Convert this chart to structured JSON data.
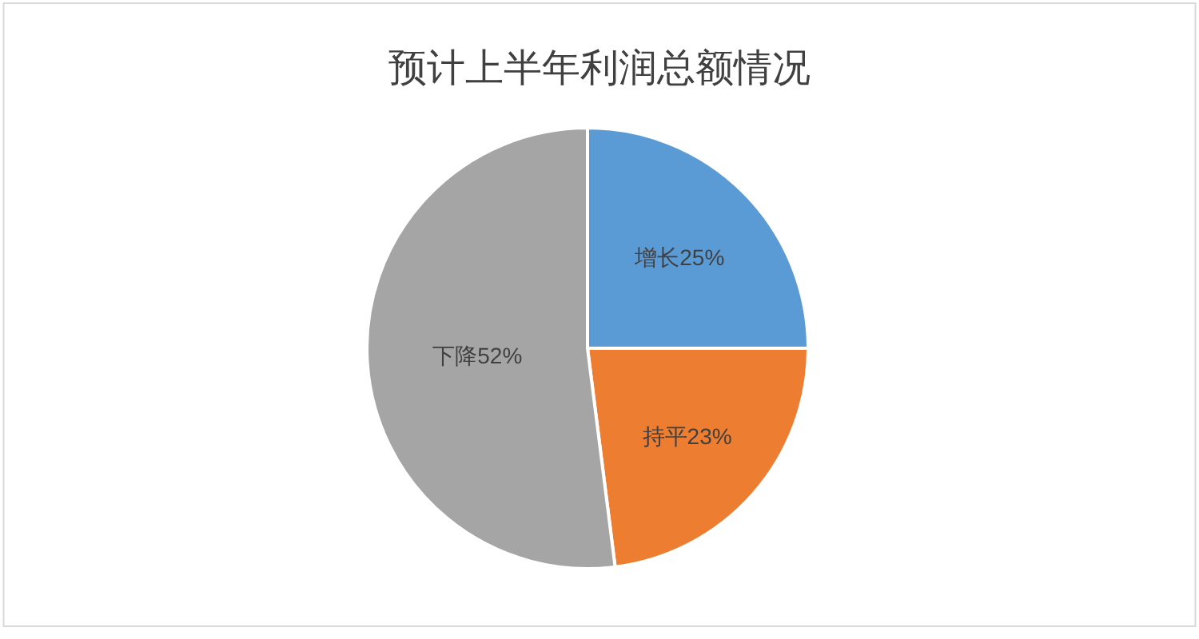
{
  "chart_data": {
    "type": "pie",
    "title": "预计上半年利润总额情况",
    "categories": [
      "增长",
      "持平",
      "下降"
    ],
    "values": [
      25,
      23,
      52
    ],
    "colors": [
      "#5b9bd5",
      "#ed7d31",
      "#a5a5a5"
    ],
    "value_labels": [
      "25%",
      "23%",
      "52%"
    ],
    "legend": false
  }
}
